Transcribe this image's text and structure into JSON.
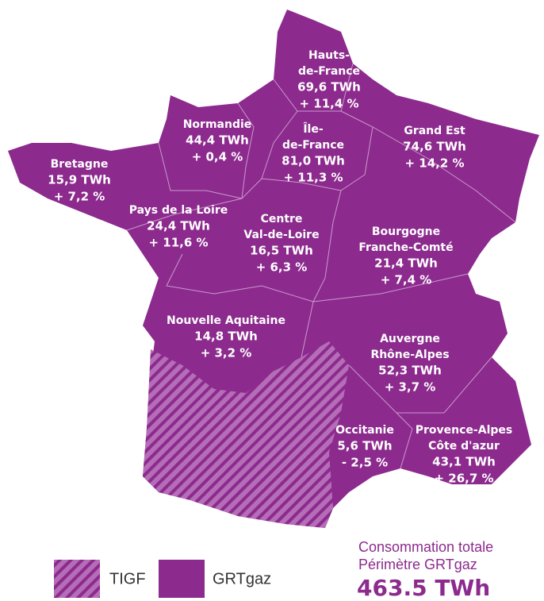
{
  "regions": [
    {
      "name": [
        "Hauts-",
        "de-France"
      ],
      "consumption": "69,6 TWh",
      "change": "+ 11,4 %"
    },
    {
      "name": [
        "Normandie"
      ],
      "consumption": "44,4 TWh",
      "change": "+ 0,4 %"
    },
    {
      "name": [
        "Île-",
        "de-France"
      ],
      "consumption": "81,0 TWh",
      "change": "+ 11,3 %"
    },
    {
      "name": [
        "Grand Est"
      ],
      "consumption": "74,6 TWh",
      "change": "+ 14,2 %"
    },
    {
      "name": [
        "Bretagne"
      ],
      "consumption": "15,9 TWh",
      "change": "+ 7,2 %"
    },
    {
      "name": [
        "Pays de la Loire"
      ],
      "consumption": "24,4 TWh",
      "change": "+ 11,6 %"
    },
    {
      "name": [
        "Centre",
        "Val-de-Loire"
      ],
      "consumption": "16,5 TWh",
      "change": "+ 6,3 %"
    },
    {
      "name": [
        "Bourgogne",
        "Franche-Comté"
      ],
      "consumption": "21,4 TWh",
      "change": "+ 7,4 %"
    },
    {
      "name": [
        "Nouvelle Aquitaine"
      ],
      "consumption": "14,8 TWh",
      "change": "+ 3,2 %"
    },
    {
      "name": [
        "Auvergne",
        "Rhône-Alpes"
      ],
      "consumption": "52,3 TWh",
      "change": "+ 3,7 %"
    },
    {
      "name": [
        "Occitanie"
      ],
      "consumption": "5,6 TWh",
      "change": "- 2,5 %"
    },
    {
      "name": [
        "Provence-Alpes",
        "Côte d'azur"
      ],
      "consumption": "43,1 TWh",
      "change": "+ 26,7 %"
    }
  ],
  "legend": [
    "TIGF",
    "GRTgaz"
  ],
  "total": {
    "line1": "Consommation totale",
    "line2": "Périmètre GRTgaz",
    "value": "463.5 TWh"
  }
}
